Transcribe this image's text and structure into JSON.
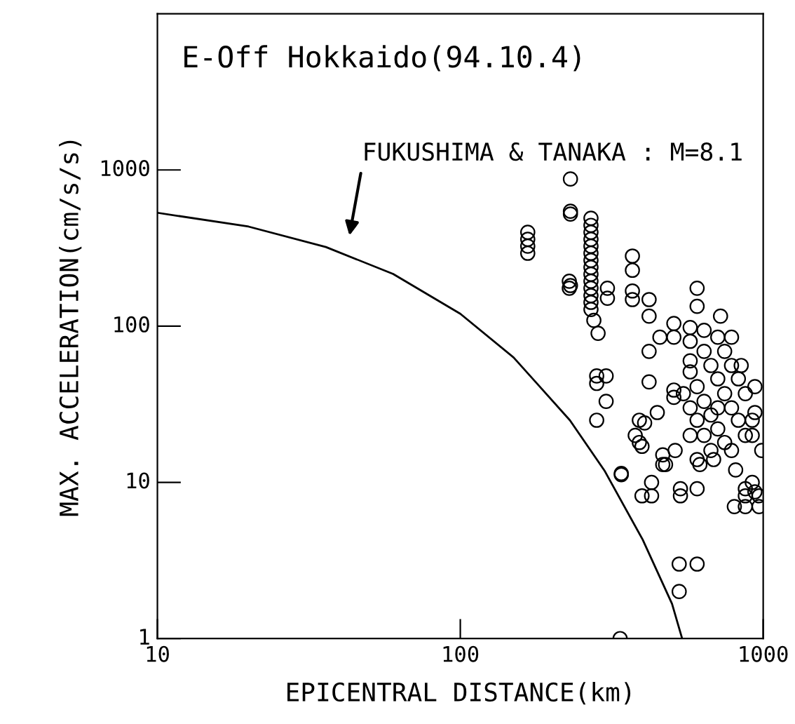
{
  "chart_data": {
    "type": "scatter",
    "title": "E-Off Hokkaido(94.10.4)",
    "xlabel": "EPICENTRAL DISTANCE(km)",
    "ylabel": "MAX. ACCELERATION(cm/s/s)",
    "log": "xy",
    "grid": false,
    "legend": false,
    "xlim": [
      10,
      1000
    ],
    "xticks": [
      10,
      100,
      1000
    ],
    "ylim": [
      1,
      10000
    ],
    "yticks": [
      1,
      10,
      100,
      1000
    ],
    "annotations": [
      "FUKUSHIMA & TANAKA : M=8.1"
    ],
    "series": [
      {
        "type": "line",
        "color": "#000000",
        "line_style": "solid",
        "marker": "none",
        "x": [
          10,
          20,
          36,
          60,
          100,
          150,
          230,
          300,
          400,
          500,
          540
        ],
        "values": [
          532,
          434,
          321,
          216,
          120,
          63,
          25,
          11.8,
          4.3,
          1.67,
          1
        ]
      },
      {
        "color": "#000000",
        "marker": "circle",
        "x": [
          231,
          231,
          167,
          167,
          167,
          167,
          231,
          231,
          270,
          270,
          270,
          270,
          270,
          270,
          270,
          270,
          270,
          270,
          270,
          270,
          270,
          270,
          229,
          229,
          306,
          306,
          276,
          285,
          370,
          370,
          370,
          370,
          420,
          420,
          605,
          605,
          723,
          507,
          507,
          420,
          420,
          456,
          574,
          574,
          574,
          282,
          282,
          303,
          303,
          282,
          447,
          390,
          378,
          390,
          507,
          507,
          466,
          512,
          476,
          340,
          846,
          939,
          939,
          989,
          406,
          398,
          466,
          618,
          605,
          686,
          811,
          340,
          428,
          398,
          428,
          533,
          533,
          605,
          920,
          873,
          939,
          873,
          969,
          803,
          873,
          969,
          528,
          605,
          528,
          337,
          574,
          605,
          638,
          672,
          708,
          746,
          638,
          672,
          708,
          746,
          786,
          828,
          873,
          574,
          605,
          638,
          672,
          708,
          746,
          786,
          828,
          873,
          920,
          786,
          638,
          708,
          574,
          545,
          786,
          920
        ],
        "values": [
          875,
          544,
          399,
          360,
          325,
          293,
          182,
          522,
          491,
          442,
          399,
          360,
          325,
          293,
          264,
          238,
          215,
          194,
          175,
          157,
          142,
          128,
          194,
          175,
          175,
          151,
          109,
          90,
          281,
          228,
          168,
          148,
          148,
          116,
          175,
          134,
          116,
          104,
          85,
          69,
          44,
          85,
          98,
          80,
          60,
          48,
          43,
          48,
          33,
          25,
          28,
          25,
          20,
          18,
          39,
          35,
          15,
          16,
          13,
          11.4,
          56,
          41,
          28,
          16,
          24,
          17,
          13,
          13,
          14,
          14,
          12,
          11.2,
          10,
          8.2,
          8.2,
          9.1,
          8.2,
          9.1,
          10,
          9.1,
          8.7,
          8.2,
          8.2,
          7,
          7,
          7,
          3,
          3,
          2,
          1,
          51,
          41,
          33,
          27,
          22,
          18,
          69,
          56,
          46,
          37,
          30,
          25,
          20,
          30,
          25,
          20,
          16,
          85,
          69,
          56,
          46,
          37,
          25,
          85,
          94,
          30,
          20,
          37,
          16,
          20
        ]
      }
    ]
  }
}
